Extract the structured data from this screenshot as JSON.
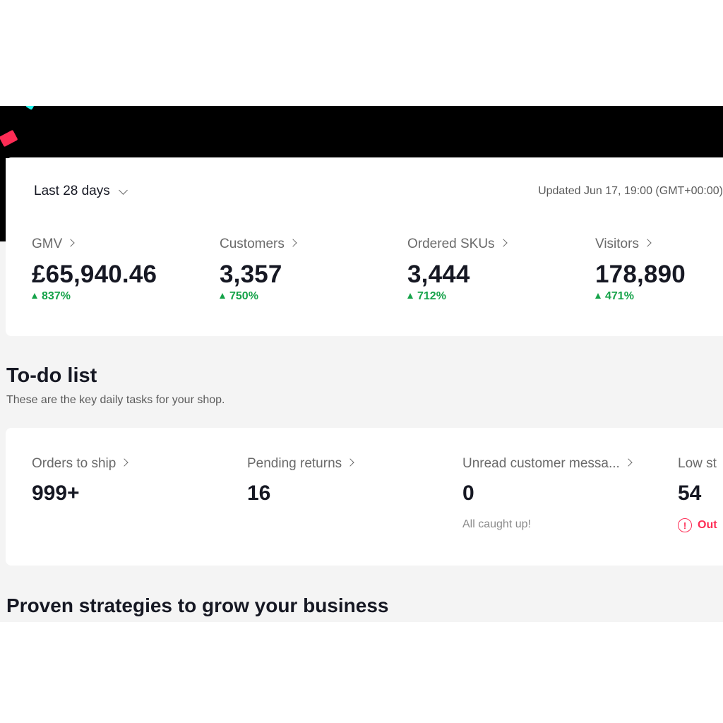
{
  "header": {
    "updated": "Updated Jun 17, 19:00 (GMT+00:00)"
  },
  "range": {
    "label": "Last 28 days"
  },
  "metrics": [
    {
      "label": "GMV",
      "value": "£65,940.46",
      "change": "837%"
    },
    {
      "label": "Customers",
      "value": "3,357",
      "change": "750%"
    },
    {
      "label": "Ordered SKUs",
      "value": "3,444",
      "change": "712%"
    },
    {
      "label": "Visitors",
      "value": "178,890",
      "change": "471%"
    }
  ],
  "todo": {
    "title": "To-do list",
    "subtitle": "These are the key daily tasks for your shop.",
    "items": [
      {
        "label": "Orders to ship",
        "value": "999+"
      },
      {
        "label": "Pending returns",
        "value": "16"
      },
      {
        "label": "Unread customer messa...",
        "value": "0",
        "note": "All caught up!"
      },
      {
        "label": "Low st",
        "value": "54",
        "warning": "Out"
      }
    ]
  },
  "strategies": {
    "title": "Proven strategies to grow your business"
  },
  "colors": {
    "positive": "#16a34a",
    "warning": "#fe2c55",
    "brand_cyan": "#25f4ee",
    "brand_pink": "#fe2c55"
  }
}
